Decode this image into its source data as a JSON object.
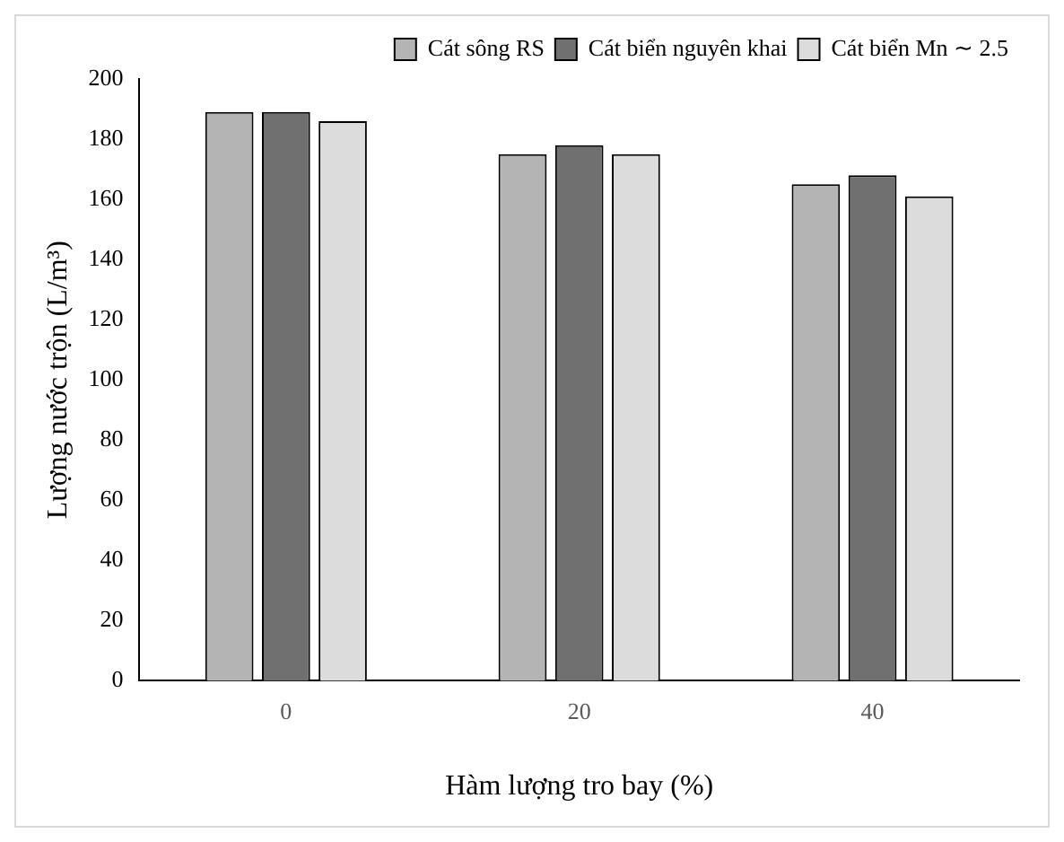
{
  "chart_data": {
    "type": "bar",
    "xlabel": "Hàm lượng tro bay (%)",
    "ylabel": "Lượng nước trộn (L/m³)",
    "categories": [
      "0",
      "20",
      "40"
    ],
    "series": [
      {
        "name": "Cát sông RS",
        "color": "#b4b4b4",
        "values": [
          189,
          175,
          165
        ]
      },
      {
        "name": "Cát biển nguyên khai",
        "color": "#707070",
        "values": [
          189,
          178,
          168
        ]
      },
      {
        "name": "Cát biển Mn ∼ 2.5",
        "color": "#dcdcdc",
        "values": [
          186,
          175,
          161
        ]
      }
    ],
    "ylim": [
      0,
      200
    ],
    "yticks": [
      0,
      20,
      40,
      60,
      80,
      100,
      120,
      140,
      160,
      180,
      200
    ],
    "grid": false,
    "legend": "top right"
  }
}
